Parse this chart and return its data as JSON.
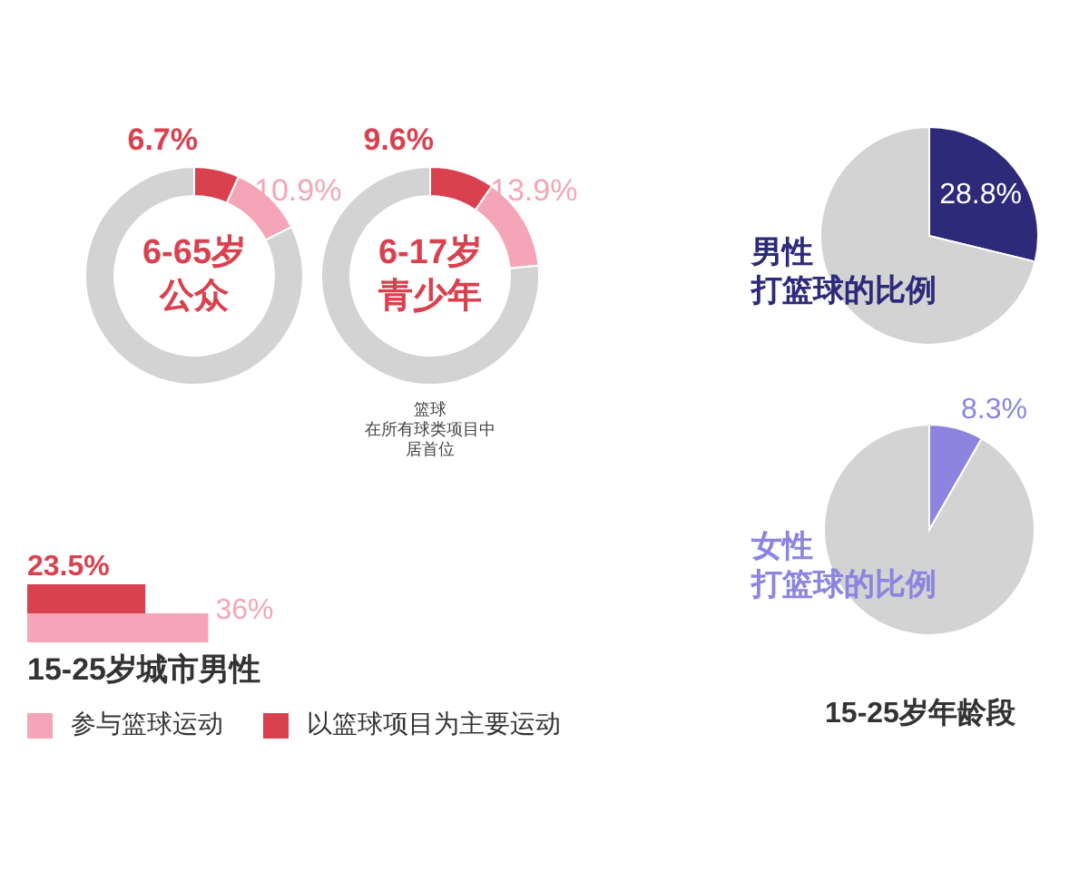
{
  "chart_data": [
    {
      "type": "donut",
      "title": "6-65岁",
      "subtitle": "公众",
      "categories": [
        null,
        null,
        null
      ],
      "values": [
        6.7,
        10.9,
        82.4
      ],
      "colors": [
        "#d9414f",
        "#f4a6b8",
        "#d3d3d3"
      ],
      "value_labels": [
        "6.7%",
        "10.9%",
        null
      ]
    },
    {
      "type": "donut",
      "title": "6-17岁",
      "subtitle": "青少年",
      "categories": [
        null,
        null,
        null
      ],
      "values": [
        9.6,
        13.9,
        76.5
      ],
      "colors": [
        "#d9414f",
        "#f4a6b8",
        "#d3d3d3"
      ],
      "value_labels": [
        "9.6%",
        "13.9%",
        null
      ],
      "annotations": [
        "篮球",
        "在所有球类项目中",
        "居首位"
      ]
    },
    {
      "type": "bar",
      "orientation": "horizontal",
      "title": "15-25岁城市男性",
      "categories": [
        null
      ],
      "legend": "bottom",
      "series": [
        {
          "name": "以篮球项目为主要运动",
          "color": "#d9414f",
          "values": [
            23.5
          ],
          "value_labels": [
            "23.5%"
          ]
        },
        {
          "name": "参与篮球运动",
          "color": "#f4a6b8",
          "values": [
            36
          ],
          "value_labels": [
            "36%"
          ]
        }
      ]
    },
    {
      "type": "pie",
      "title": "男性",
      "subtitle": "打篮球的比例",
      "categories": [
        null,
        null
      ],
      "values": [
        28.8,
        71.2
      ],
      "colors": [
        "#2e2a7a",
        "#d3d3d3"
      ],
      "value_labels": [
        "28.8%",
        null
      ]
    },
    {
      "type": "pie",
      "title": "女性",
      "subtitle": "打篮球的比例",
      "categories": [
        null,
        null
      ],
      "values": [
        8.3,
        91.7
      ],
      "colors": [
        "#8d84e0",
        "#d3d3d3"
      ],
      "value_labels": [
        "8.3%",
        null
      ],
      "annotations": [
        "15-25岁年龄段"
      ]
    }
  ]
}
